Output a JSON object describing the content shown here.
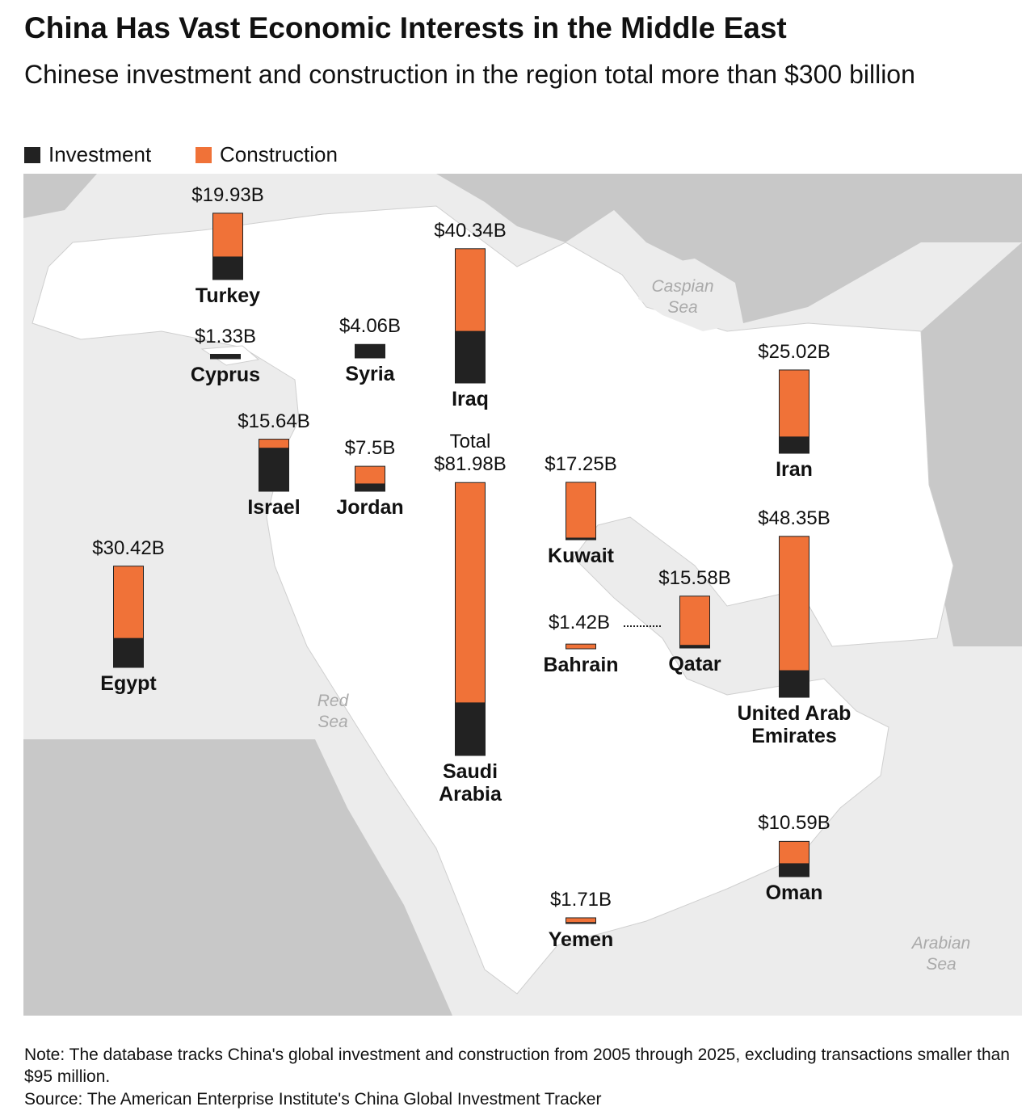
{
  "chart_data": {
    "type": "bar",
    "title": "China Has Vast Economic Interests in the Middle East",
    "subtitle": "Chinese investment and construction in the region total more than $300 billion",
    "categories": [
      "Turkey",
      "Cyprus",
      "Syria",
      "Iraq",
      "Israel",
      "Jordan",
      "Saudi Arabia",
      "Kuwait",
      "Iran",
      "United Arab Emirates",
      "Qatar",
      "Bahrain",
      "Egypt",
      "Oman",
      "Yemen"
    ],
    "series": [
      {
        "name": "Investment",
        "color": "#222222",
        "values": [
          6.8,
          1.33,
          4.06,
          15.5,
          12.94,
          2.2,
          15.8,
          0.5,
          4.9,
          8.0,
          0.8,
          0,
          8.7,
          3.9,
          0.3
        ]
      },
      {
        "name": "Construction",
        "color": "#f07238",
        "values": [
          13.13,
          0,
          0,
          24.84,
          2.7,
          5.3,
          66.18,
          16.75,
          20.12,
          40.35,
          14.78,
          1.42,
          21.72,
          6.69,
          1.41
        ]
      }
    ],
    "total_values": [
      19.93,
      1.33,
      4.06,
      40.34,
      15.64,
      7.5,
      81.98,
      17.25,
      25.02,
      48.35,
      15.58,
      1.42,
      30.42,
      10.59,
      1.71
    ],
    "value_labels": [
      "$19.93B",
      "$1.33B",
      "$4.06B",
      "$40.34B",
      "$15.64B",
      "$7.5B",
      "$81.98B",
      "$17.25B",
      "$25.02B",
      "$48.35B",
      "$15.58B",
      "$1.42B",
      "$30.42B",
      "$10.59B",
      "$1.71B"
    ],
    "total_note": "Total",
    "map_labels": [
      "Caspian Sea",
      "Red Sea",
      "Arabian Sea"
    ],
    "note": "Note: The database tracks China's global investment and construction from 2005 through 2025, excluding transactions smaller than $95 million.",
    "source": "Source: The American Enterprise Institute's China Global Investment Tracker"
  }
}
